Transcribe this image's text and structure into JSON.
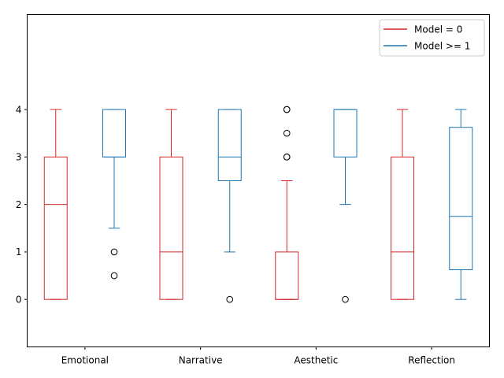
{
  "chart_data": {
    "type": "box",
    "categories": [
      "Emotional",
      "Narrative",
      "Aesthetic",
      "Reflection"
    ],
    "ylim": [
      -1,
      6
    ],
    "yticks": [
      0,
      1,
      2,
      3,
      4
    ],
    "grid": false,
    "legend_position": "top-right",
    "series": [
      {
        "name": "Model = 0",
        "color": "#d62728",
        "boxes": [
          {
            "whisker_low": 0,
            "q1": 0,
            "median": 2,
            "q3": 3,
            "whisker_high": 4,
            "outliers": []
          },
          {
            "whisker_low": 0,
            "q1": 0,
            "median": 1,
            "q3": 3,
            "whisker_high": 4,
            "outliers": []
          },
          {
            "whisker_low": 0,
            "q1": 0,
            "median": 0,
            "q3": 1,
            "whisker_high": 2.5,
            "outliers": [
              3,
              3,
              3.5,
              4,
              4
            ]
          },
          {
            "whisker_low": 0,
            "q1": 0,
            "median": 1,
            "q3": 3,
            "whisker_high": 4,
            "outliers": []
          }
        ]
      },
      {
        "name": "Model >= 1",
        "color": "#1f77b4",
        "boxes": [
          {
            "whisker_low": 1.5,
            "q1": 3,
            "median": 3,
            "q3": 4,
            "whisker_high": 4,
            "outliers": [
              1,
              0.5
            ]
          },
          {
            "whisker_low": 1,
            "q1": 2.5,
            "median": 3,
            "q3": 4,
            "whisker_high": 4,
            "outliers": [
              0
            ]
          },
          {
            "whisker_low": 2,
            "q1": 3,
            "median": 4,
            "q3": 4,
            "whisker_high": 4,
            "outliers": [
              0
            ]
          },
          {
            "whisker_low": 0,
            "q1": 0.625,
            "median": 1.75,
            "q3": 3.625,
            "whisker_high": 4,
            "outliers": []
          }
        ]
      }
    ]
  }
}
